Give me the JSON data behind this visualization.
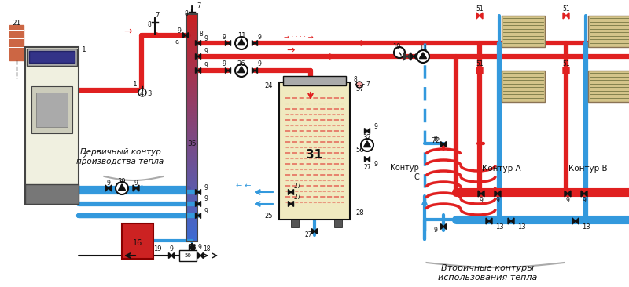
{
  "bg_color": "#ffffff",
  "red": "#e02020",
  "blue": "#3399dd",
  "black": "#111111",
  "tan": "#d4c48a",
  "light_tan": "#f0eac0",
  "dark_gray": "#444444",
  "boiler_bg": "#f0f0e0",
  "boiler_top": "#888888",
  "wall_color": "#cc6644",
  "vessel_color": "#cc2222",
  "sep_top": "#cc2222",
  "sep_bot": "#3399dd",
  "title_primary": "Первичный контур\nпроизводства тепла",
  "title_secondary": "Вторичные контуры\nиспользования тепла",
  "label_A": "Контур А",
  "label_B": "Контур В",
  "label_C": "Контур\nС"
}
